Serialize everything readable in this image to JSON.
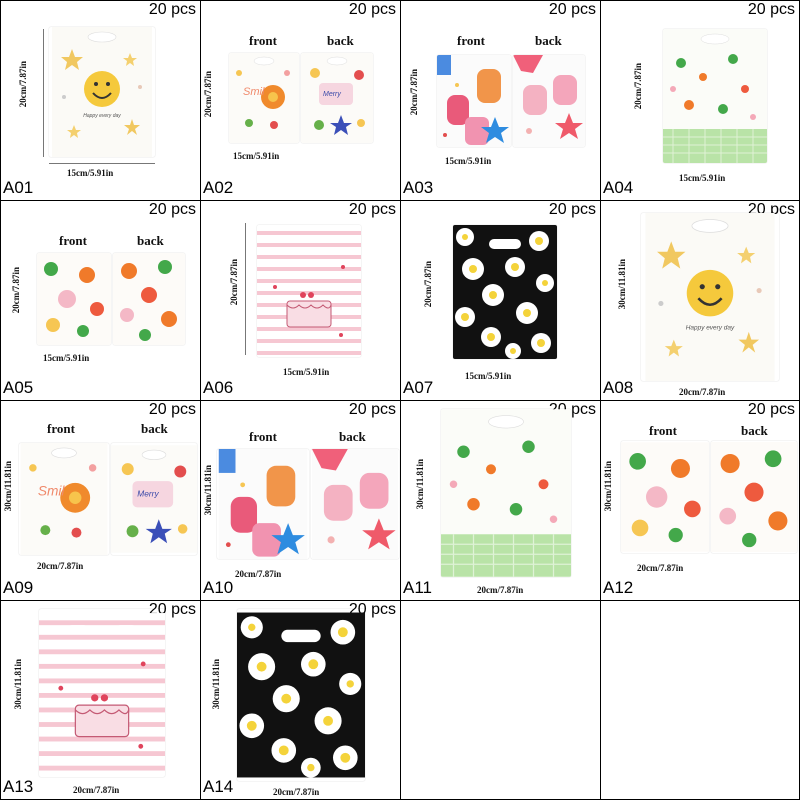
{
  "labels": {
    "qty": "20 pcs",
    "front": "front",
    "back": "back"
  },
  "dims": {
    "h20": "20cm/7.87in",
    "h30": "30cm/11.81in",
    "w15": "15cm/5.91in",
    "w20": "20cm/7.87in"
  },
  "smiley_text": "Happy every day",
  "products": [
    {
      "code": "A01",
      "design": "smiley"
    },
    {
      "code": "A02",
      "design": "smile-flower",
      "two_sided": true
    },
    {
      "code": "A03",
      "design": "strawberry-jar",
      "two_sided": true
    },
    {
      "code": "A04",
      "design": "green-floral"
    },
    {
      "code": "A05",
      "design": "flower-pattern",
      "two_sided": true
    },
    {
      "code": "A06",
      "design": "pink-cake"
    },
    {
      "code": "A07",
      "design": "daisy-black"
    },
    {
      "code": "A08",
      "design": "smiley"
    },
    {
      "code": "A09",
      "design": "smile-flower",
      "two_sided": true
    },
    {
      "code": "A10",
      "design": "strawberry-jar",
      "two_sided": true
    },
    {
      "code": "A11",
      "design": "green-floral"
    },
    {
      "code": "A12",
      "design": "flower-pattern",
      "two_sided": true
    },
    {
      "code": "A13",
      "design": "pink-cake"
    },
    {
      "code": "A14",
      "design": "daisy-black"
    }
  ]
}
